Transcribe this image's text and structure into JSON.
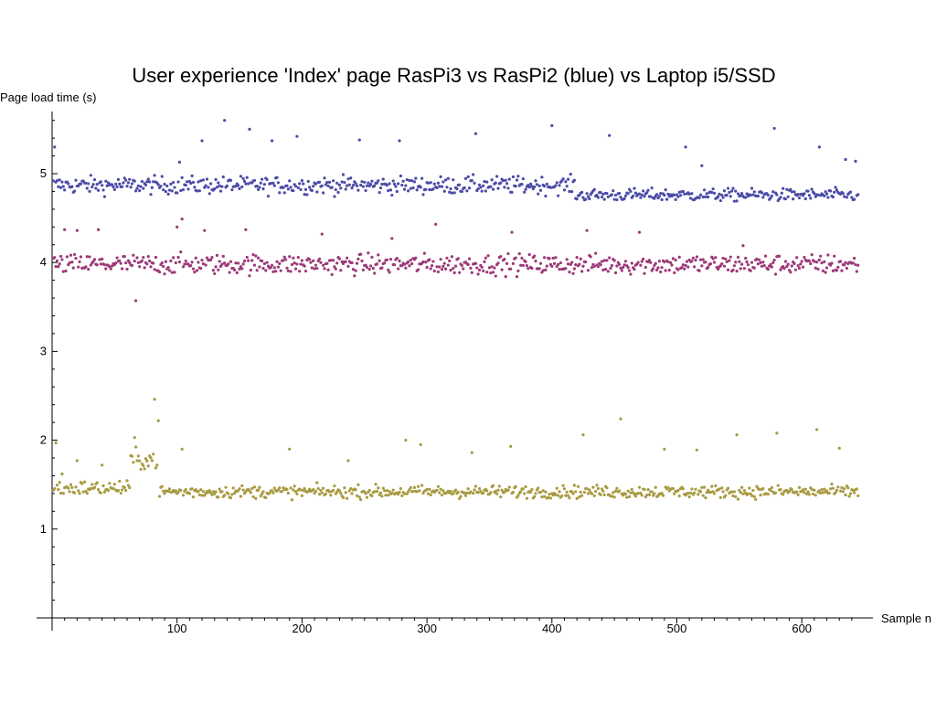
{
  "chart_data": {
    "type": "scatter",
    "title": "User experience 'Index' page RasPi3 vs RasPi2 (blue) vs Laptop i5/SSD",
    "xlabel": "Sample n",
    "ylabel": "Page load time (s)",
    "xlim": [
      0,
      660
    ],
    "ylim": [
      0,
      5.7
    ],
    "x_ticks": [
      100,
      200,
      300,
      400,
      500,
      600
    ],
    "y_ticks": [
      1,
      2,
      3,
      4,
      5
    ],
    "grid": false,
    "n_samples": 645,
    "series": [
      {
        "color": "#4b4ba8",
        "segments": [
          {
            "x_from": 1,
            "x_to": 418,
            "center": 4.87,
            "spread": 0.07
          },
          {
            "x_from": 419,
            "x_to": 645,
            "center": 4.76,
            "spread": 0.05
          }
        ],
        "outliers": [
          {
            "x": 2,
            "y": 5.3
          },
          {
            "x": 102,
            "y": 5.13
          },
          {
            "x": 120,
            "y": 5.37
          },
          {
            "x": 138,
            "y": 5.6
          },
          {
            "x": 158,
            "y": 5.5
          },
          {
            "x": 176,
            "y": 5.37
          },
          {
            "x": 196,
            "y": 5.42
          },
          {
            "x": 246,
            "y": 5.38
          },
          {
            "x": 278,
            "y": 5.37
          },
          {
            "x": 339,
            "y": 5.45
          },
          {
            "x": 400,
            "y": 5.54
          },
          {
            "x": 446,
            "y": 5.43
          },
          {
            "x": 507,
            "y": 5.3
          },
          {
            "x": 520,
            "y": 5.09
          },
          {
            "x": 578,
            "y": 5.51
          },
          {
            "x": 614,
            "y": 5.3
          },
          {
            "x": 635,
            "y": 5.16
          },
          {
            "x": 643,
            "y": 5.14
          }
        ]
      },
      {
        "color": "#9c3a78",
        "segments": [
          {
            "x_from": 1,
            "x_to": 645,
            "center": 3.98,
            "spread": 0.08
          }
        ],
        "outliers": [
          {
            "x": 10,
            "y": 4.37
          },
          {
            "x": 20,
            "y": 4.36
          },
          {
            "x": 37,
            "y": 4.37
          },
          {
            "x": 67,
            "y": 3.57
          },
          {
            "x": 100,
            "y": 4.4
          },
          {
            "x": 104,
            "y": 4.49
          },
          {
            "x": 122,
            "y": 4.36
          },
          {
            "x": 155,
            "y": 4.37
          },
          {
            "x": 216,
            "y": 4.32
          },
          {
            "x": 272,
            "y": 4.27
          },
          {
            "x": 307,
            "y": 4.43
          },
          {
            "x": 368,
            "y": 4.34
          },
          {
            "x": 428,
            "y": 4.36
          },
          {
            "x": 470,
            "y": 4.34
          },
          {
            "x": 553,
            "y": 4.19
          }
        ]
      },
      {
        "color": "#a89a40",
        "segments": [
          {
            "x_from": 1,
            "x_to": 62,
            "center": 1.46,
            "spread": 0.06
          },
          {
            "x_from": 63,
            "x_to": 84,
            "center": 1.78,
            "spread": 0.08
          },
          {
            "x_from": 85,
            "x_to": 645,
            "center": 1.42,
            "spread": 0.05
          }
        ],
        "outliers": [
          {
            "x": 3,
            "y": 1.97
          },
          {
            "x": 8,
            "y": 1.62
          },
          {
            "x": 20,
            "y": 1.77
          },
          {
            "x": 40,
            "y": 1.72
          },
          {
            "x": 66,
            "y": 2.03
          },
          {
            "x": 82,
            "y": 2.46
          },
          {
            "x": 85,
            "y": 2.22
          },
          {
            "x": 104,
            "y": 1.9
          },
          {
            "x": 190,
            "y": 1.9
          },
          {
            "x": 237,
            "y": 1.77
          },
          {
            "x": 283,
            "y": 2.0
          },
          {
            "x": 295,
            "y": 1.95
          },
          {
            "x": 336,
            "y": 1.86
          },
          {
            "x": 367,
            "y": 1.93
          },
          {
            "x": 425,
            "y": 2.06
          },
          {
            "x": 455,
            "y": 2.24
          },
          {
            "x": 490,
            "y": 1.9
          },
          {
            "x": 516,
            "y": 1.89
          },
          {
            "x": 548,
            "y": 2.06
          },
          {
            "x": 580,
            "y": 2.08
          },
          {
            "x": 612,
            "y": 2.12
          },
          {
            "x": 630,
            "y": 1.91
          }
        ]
      }
    ]
  }
}
